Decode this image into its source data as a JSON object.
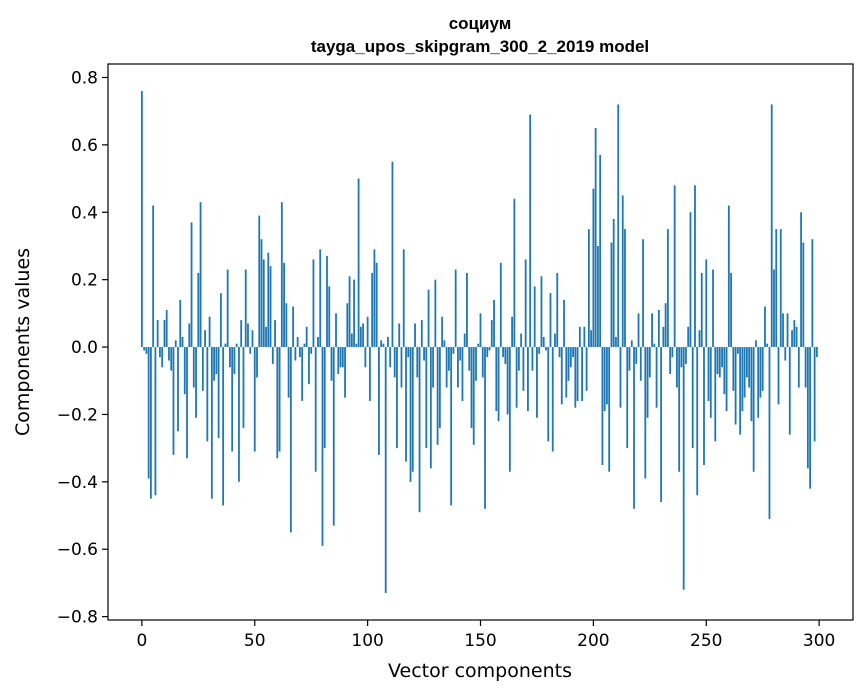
{
  "chart_data": {
    "type": "bar",
    "title": "социум",
    "subtitle": "tayga_upos_skipgram_300_2_2019 model",
    "xlabel": "Vector components",
    "ylabel": "Components values",
    "xlim": [
      -15,
      315
    ],
    "ylim": [
      -0.81,
      0.84
    ],
    "xticks": [
      0,
      50,
      100,
      150,
      200,
      250,
      300
    ],
    "xtick_labels": [
      "0",
      "50",
      "100",
      "150",
      "200",
      "250",
      "300"
    ],
    "yticks": [
      -0.8,
      -0.6,
      -0.4,
      -0.2,
      0.0,
      0.2,
      0.4,
      0.6,
      0.8
    ],
    "ytick_labels": [
      "−0.8",
      "−0.6",
      "−0.4",
      "−0.2",
      "0.0",
      "0.2",
      "0.4",
      "0.6",
      "0.8"
    ],
    "bar_color": "#1f77b4",
    "grid": false,
    "x": [
      0,
      1,
      2,
      3,
      4,
      5,
      6,
      7,
      8,
      9,
      10,
      11,
      12,
      13,
      14,
      15,
      16,
      17,
      18,
      19,
      20,
      21,
      22,
      23,
      24,
      25,
      26,
      27,
      28,
      29,
      30,
      31,
      32,
      33,
      34,
      35,
      36,
      37,
      38,
      39,
      40,
      41,
      42,
      43,
      44,
      45,
      46,
      47,
      48,
      49,
      50,
      51,
      52,
      53,
      54,
      55,
      56,
      57,
      58,
      59,
      60,
      61,
      62,
      63,
      64,
      65,
      66,
      67,
      68,
      69,
      70,
      71,
      72,
      73,
      74,
      75,
      76,
      77,
      78,
      79,
      80,
      81,
      82,
      83,
      84,
      85,
      86,
      87,
      88,
      89,
      90,
      91,
      92,
      93,
      94,
      95,
      96,
      97,
      98,
      99,
      100,
      101,
      102,
      103,
      104,
      105,
      106,
      107,
      108,
      109,
      110,
      111,
      112,
      113,
      114,
      115,
      116,
      117,
      118,
      119,
      120,
      121,
      122,
      123,
      124,
      125,
      126,
      127,
      128,
      129,
      130,
      131,
      132,
      133,
      134,
      135,
      136,
      137,
      138,
      139,
      140,
      141,
      142,
      143,
      144,
      145,
      146,
      147,
      148,
      149,
      150,
      151,
      152,
      153,
      154,
      155,
      156,
      157,
      158,
      159,
      160,
      161,
      162,
      163,
      164,
      165,
      166,
      167,
      168,
      169,
      170,
      171,
      172,
      173,
      174,
      175,
      176,
      177,
      178,
      179,
      180,
      181,
      182,
      183,
      184,
      185,
      186,
      187,
      188,
      189,
      190,
      191,
      192,
      193,
      194,
      195,
      196,
      197,
      198,
      199,
      200,
      201,
      202,
      203,
      204,
      205,
      206,
      207,
      208,
      209,
      210,
      211,
      212,
      213,
      214,
      215,
      216,
      217,
      218,
      219,
      220,
      221,
      222,
      223,
      224,
      225,
      226,
      227,
      228,
      229,
      230,
      231,
      232,
      233,
      234,
      235,
      236,
      237,
      238,
      239,
      240,
      241,
      242,
      243,
      244,
      245,
      246,
      247,
      248,
      249,
      250,
      251,
      252,
      253,
      254,
      255,
      256,
      257,
      258,
      259,
      260,
      261,
      262,
      263,
      264,
      265,
      266,
      267,
      268,
      269,
      270,
      271,
      272,
      273,
      274,
      275,
      276,
      277,
      278,
      279,
      280,
      281,
      282,
      283,
      284,
      285,
      286,
      287,
      288,
      289,
      290,
      291,
      292,
      293,
      294,
      295,
      296,
      297,
      298,
      299
    ],
    "values": [
      0.76,
      -0.01,
      -0.02,
      -0.39,
      -0.45,
      0.42,
      -0.44,
      0.08,
      -0.03,
      -0.06,
      0.08,
      0.11,
      -0.04,
      -0.07,
      -0.32,
      0.02,
      -0.25,
      0.14,
      0.03,
      -0.14,
      -0.33,
      0.07,
      0.37,
      -0.12,
      -0.21,
      0.22,
      0.43,
      -0.13,
      0.05,
      -0.28,
      0.09,
      -0.45,
      -0.1,
      -0.08,
      -0.27,
      0.16,
      -0.47,
      0.01,
      0.23,
      -0.06,
      -0.31,
      -0.08,
      0.01,
      -0.4,
      0.08,
      -0.24,
      0.23,
      0.07,
      -0.02,
      0.05,
      -0.31,
      -0.09,
      0.39,
      0.32,
      0.26,
      0.06,
      0.28,
      0.24,
      -0.05,
      0.08,
      -0.33,
      -0.31,
      0.43,
      0.25,
      0.13,
      -0.15,
      -0.55,
      0.12,
      -0.04,
      0.03,
      -0.03,
      -0.16,
      0.01,
      0.06,
      -0.11,
      -0.02,
      0.26,
      -0.37,
      0.03,
      0.29,
      -0.59,
      -0.3,
      0.27,
      0.18,
      -0.1,
      -0.53,
      0.1,
      -0.08,
      -0.06,
      -0.06,
      -0.15,
      0.13,
      0.21,
      0.04,
      0.2,
      0.01,
      0.5,
      0.06,
      0.07,
      -0.06,
      0.09,
      -0.16,
      0.22,
      0.29,
      0.25,
      -0.32,
      0.02,
      0.01,
      -0.73,
      0.03,
      -0.06,
      0.55,
      -0.09,
      -0.3,
      0.07,
      -0.12,
      0.29,
      -0.34,
      -0.03,
      -0.4,
      -0.37,
      0.07,
      -0.09,
      -0.49,
      0.08,
      -0.04,
      -0.3,
      0.17,
      -0.36,
      -0.12,
      0.2,
      -0.29,
      -0.24,
      0.09,
      0.02,
      -0.12,
      -0.07,
      -0.47,
      -0.02,
      0.23,
      -0.12,
      -0.04,
      -0.16,
      0.04,
      0.22,
      -0.07,
      -0.24,
      -0.29,
      -0.1,
      0.01,
      0.1,
      -0.09,
      -0.48,
      -0.03,
      -0.01,
      0.08,
      0.14,
      -0.19,
      -0.22,
      0.25,
      -0.03,
      -0.05,
      -0.2,
      -0.37,
      0.09,
      0.44,
      -0.18,
      -0.07,
      0.04,
      -0.13,
      0.26,
      -0.19,
      0.69,
      -0.07,
      0.18,
      -0.21,
      -0.02,
      0.21,
      0.03,
      -0.01,
      -0.28,
      0.16,
      -0.31,
      0.04,
      0.22,
      -0.03,
      -0.17,
      0.14,
      -0.15,
      -0.1,
      -0.06,
      -0.03,
      -0.18,
      -0.16,
      0.06,
      -0.16,
      0.06,
      -0.13,
      0.35,
      0.05,
      0.47,
      0.65,
      0.3,
      0.57,
      -0.35,
      -0.19,
      -0.17,
      -0.37,
      0.31,
      0.38,
      0.03,
      0.72,
      -0.18,
      0.45,
      0.35,
      -0.3,
      -0.07,
      0.02,
      -0.48,
      -0.05,
      0.1,
      -0.1,
      0.32,
      -0.39,
      -0.21,
      -0.09,
      0.1,
      0.01,
      -0.18,
      0.11,
      -0.46,
      0.06,
      0.13,
      0.35,
      -0.08,
      -0.03,
      0.48,
      -0.12,
      -0.37,
      -0.06,
      -0.72,
      -0.05,
      0.06,
      0.4,
      -0.3,
      0.48,
      -0.44,
      0.05,
      0.22,
      -0.35,
      0.26,
      -0.16,
      -0.21,
      0.23,
      -0.28,
      -0.08,
      -0.09,
      -0.06,
      -0.14,
      -0.19,
      0.42,
      0.22,
      -0.13,
      -0.23,
      -0.02,
      -0.26,
      -0.19,
      -0.15,
      -0.09,
      -0.12,
      -0.22,
      -0.37,
      0.02,
      -0.21,
      -0.15,
      -0.13,
      0.12,
      0.01,
      -0.51,
      0.72,
      0.23,
      0.35,
      -0.17,
      0.35,
      0.1,
      -0.04,
      0.1,
      -0.26,
      0.05,
      0.08,
      0.06,
      -0.12,
      0.4,
      0.31,
      -0.12,
      -0.36,
      -0.42,
      0.32,
      -0.28,
      -0.03
    ]
  }
}
